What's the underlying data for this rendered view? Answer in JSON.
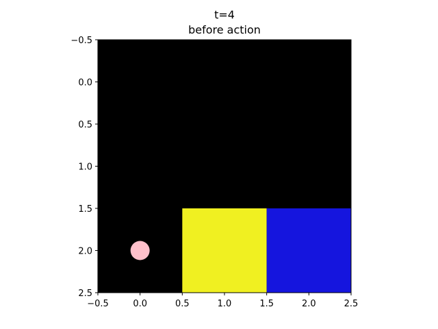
{
  "title": {
    "line1": "t=4",
    "line2": "before action"
  },
  "grid": {
    "rows": 3,
    "cols": 3,
    "background_color": "#000000",
    "cells": [
      {
        "name": "cell-yellow",
        "row": 2,
        "col": 1,
        "color": "#f0f021"
      },
      {
        "name": "cell-blue",
        "row": 2,
        "col": 2,
        "color": "#1515de"
      }
    ]
  },
  "agent": {
    "row": 2,
    "col": 0,
    "color": "#ffc0cb",
    "shape": "circle"
  },
  "axes": {
    "x_range": [
      -0.5,
      2.5
    ],
    "y_range": [
      -0.5,
      2.5
    ],
    "y_inverted": true,
    "x_ticks": [
      "−0.5",
      "0.0",
      "0.5",
      "1.0",
      "1.5",
      "2.0",
      "2.5"
    ],
    "y_ticks": [
      "−0.5",
      "0.0",
      "0.5",
      "1.0",
      "1.5",
      "2.0",
      "2.5"
    ]
  }
}
